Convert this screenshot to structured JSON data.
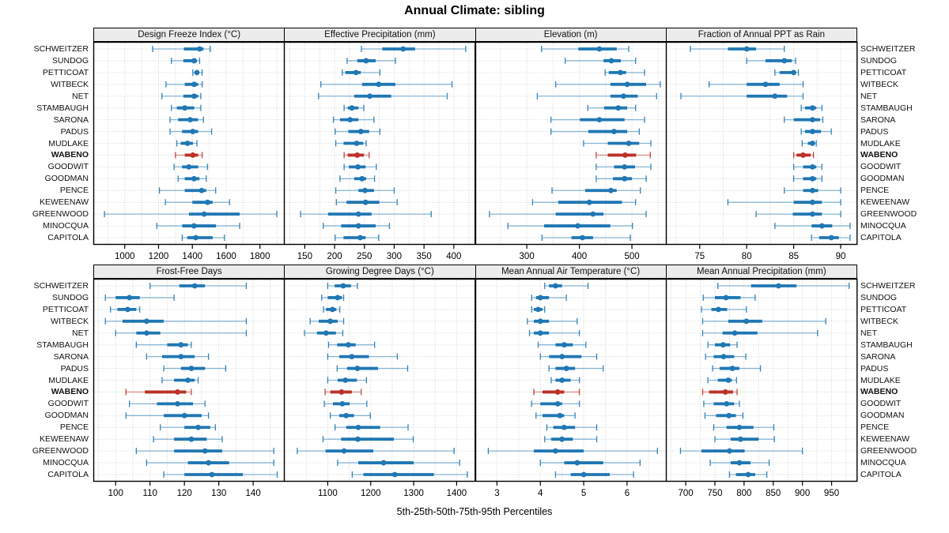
{
  "title": "Annual Climate: sibling",
  "footer": "5th-25th-50th-75th-95th Percentiles",
  "highlight_site": "WABENO",
  "colors": {
    "series_blue": "#2077b4",
    "highlight_red": "#bd3128",
    "header_bg": "#ececec",
    "grid": "#cdcdcd",
    "border": "#000000"
  },
  "sites": [
    "SCHWEITZER",
    "SUNDOG",
    "PETTICOAT",
    "WITBECK",
    "NET",
    "STAMBAUGH",
    "SARONA",
    "PADUS",
    "MUDLAKE",
    "WABENO",
    "GOODWIT",
    "GOODMAN",
    "PENCE",
    "KEWEENAW",
    "GREENWOOD",
    "MINOCQUA",
    "CAPITOLA"
  ],
  "percentile_labels": [
    "p5",
    "p25",
    "p50",
    "p75",
    "p95"
  ],
  "chart_data": [
    {
      "type": "scatter",
      "subtype": "percentile-dotplot",
      "title": "Design Freeze Index (°C)",
      "xlim": [
        814,
        1943
      ],
      "ticks": [
        1000,
        1200,
        1400,
        1600,
        1800
      ],
      "tick_labels": [
        "1000",
        "1200",
        "1400",
        "1600",
        "1800"
      ],
      "grid": [
        900,
        1000,
        1100,
        1200,
        1300,
        1400,
        1500,
        1600,
        1700,
        1800,
        1900
      ],
      "values": [
        [
          1165,
          1350,
          1443,
          1466,
          1506
        ],
        [
          1276,
          1347,
          1411,
          1427,
          1443
        ],
        [
          1403,
          1415,
          1427,
          1440,
          1458
        ],
        [
          1244,
          1355,
          1411,
          1434,
          1458
        ],
        [
          1220,
          1347,
          1411,
          1434,
          1450
        ],
        [
          1276,
          1308,
          1355,
          1411,
          1450
        ],
        [
          1268,
          1316,
          1387,
          1434,
          1466
        ],
        [
          1268,
          1339,
          1403,
          1434,
          1514
        ],
        [
          1308,
          1331,
          1371,
          1403,
          1427
        ],
        [
          1300,
          1355,
          1403,
          1434,
          1458
        ],
        [
          1292,
          1339,
          1379,
          1434,
          1490
        ],
        [
          1316,
          1355,
          1410,
          1442,
          1482
        ],
        [
          1205,
          1355,
          1455,
          1482,
          1538
        ],
        [
          1240,
          1400,
          1490,
          1520,
          1620
        ],
        [
          880,
          1380,
          1470,
          1680,
          1900
        ],
        [
          1190,
          1340,
          1410,
          1540,
          1680
        ],
        [
          1340,
          1370,
          1420,
          1520,
          1590
        ]
      ]
    },
    {
      "type": "scatter",
      "subtype": "percentile-dotplot",
      "title": "Effective Precipitation (mm)",
      "xlim": [
        115,
        435
      ],
      "ticks": [
        150,
        200,
        250,
        300,
        350,
        400
      ],
      "tick_labels": [
        "150",
        "200",
        "250",
        "300",
        "350",
        "400"
      ],
      "grid": [
        125,
        150,
        175,
        200,
        225,
        250,
        275,
        300,
        325,
        350,
        375,
        400,
        425
      ],
      "values": [
        [
          245,
          280,
          315,
          335,
          420
        ],
        [
          221,
          238,
          253,
          269,
          302
        ],
        [
          213,
          218,
          236,
          244,
          276
        ],
        [
          177,
          246,
          274,
          302,
          397
        ],
        [
          173,
          233,
          259,
          295,
          389
        ],
        [
          216,
          222,
          229,
          240,
          249
        ],
        [
          198,
          209,
          226,
          240,
          266
        ],
        [
          201,
          223,
          244,
          258,
          276
        ],
        [
          202,
          215,
          237,
          248,
          253
        ],
        [
          216,
          222,
          238,
          249,
          258
        ],
        [
          216,
          224,
          239,
          252,
          270
        ],
        [
          209,
          233,
          246,
          253,
          267
        ],
        [
          202,
          240,
          251,
          266,
          300
        ],
        [
          203,
          220,
          252,
          275,
          305
        ],
        [
          143,
          189,
          240,
          262,
          362
        ],
        [
          181,
          211,
          240,
          269,
          292
        ],
        [
          201,
          215,
          243,
          252,
          274
        ]
      ]
    },
    {
      "type": "scatter",
      "subtype": "percentile-dotplot",
      "title": "Elevation (m)",
      "xlim": [
        202,
        565
      ],
      "ticks": [
        300,
        400,
        500
      ],
      "tick_labels": [
        "300",
        "400",
        "500"
      ],
      "grid": [
        250,
        300,
        350,
        400,
        450,
        500,
        550
      ],
      "values": [
        [
          328,
          398,
          438,
          471,
          494
        ],
        [
          373,
          446,
          461,
          479,
          507
        ],
        [
          449,
          456,
          478,
          489,
          524
        ],
        [
          355,
          459,
          491,
          527,
          554
        ],
        [
          320,
          459,
          484,
          511,
          547
        ],
        [
          416,
          447,
          474,
          491,
          507
        ],
        [
          346,
          401,
          438,
          486,
          524
        ],
        [
          346,
          417,
          466,
          491,
          514
        ],
        [
          408,
          454,
          494,
          514,
          536
        ],
        [
          432,
          454,
          487,
          508,
          535
        ],
        [
          432,
          466,
          486,
          506,
          536
        ],
        [
          432,
          464,
          486,
          500,
          527
        ],
        [
          348,
          411,
          460,
          471,
          516
        ],
        [
          311,
          360,
          419,
          481,
          507
        ],
        [
          229,
          355,
          426,
          446,
          527
        ],
        [
          264,
          333,
          397,
          459,
          501
        ],
        [
          329,
          385,
          406,
          426,
          497
        ]
      ]
    },
    {
      "type": "scatter",
      "subtype": "percentile-dotplot",
      "title": "Fraction of Annual PPT as Rain",
      "xlim": [
        71.4,
        91.7
      ],
      "ticks": [
        75,
        80,
        85,
        90
      ],
      "tick_labels": [
        "75",
        "80",
        "85",
        "90"
      ],
      "grid": [
        72.5,
        75,
        77.5,
        80,
        82.5,
        85,
        87.5,
        90
      ],
      "values": [
        [
          74,
          78,
          80,
          81,
          84
        ],
        [
          80,
          82,
          84,
          84.8,
          85.2
        ],
        [
          83,
          83.5,
          85,
          85.2,
          85.5
        ],
        [
          76,
          80,
          82,
          83.5,
          86
        ],
        [
          73,
          80,
          83,
          84.3,
          86
        ],
        [
          85.8,
          86.2,
          87,
          87.4,
          88
        ],
        [
          84,
          85,
          87,
          87.8,
          88.1
        ],
        [
          85.8,
          86.2,
          87,
          87.9,
          89
        ],
        [
          85.9,
          86.5,
          87,
          87.2,
          87.4
        ],
        [
          85,
          85.3,
          86,
          86.8,
          87.1
        ],
        [
          85,
          86,
          87,
          87.4,
          88
        ],
        [
          85,
          86,
          87,
          87.4,
          88
        ],
        [
          84,
          86,
          87,
          87.6,
          90
        ],
        [
          78,
          85,
          87,
          88,
          90
        ],
        [
          81,
          84.9,
          87,
          88,
          90
        ],
        [
          83,
          86.9,
          88,
          89.1,
          91
        ],
        [
          86.9,
          87.7,
          89,
          89.8,
          91
        ]
      ]
    },
    {
      "type": "scatter",
      "subtype": "percentile-dotplot",
      "title": "Frost-Free Days",
      "xlim": [
        93.5,
        149
      ],
      "ticks": [
        100,
        110,
        120,
        130,
        140
      ],
      "tick_labels": [
        "100",
        "110",
        "120",
        "130",
        "140"
      ],
      "grid": [
        95,
        100,
        105,
        110,
        115,
        120,
        125,
        130,
        135,
        140,
        145
      ],
      "values": [
        [
          110,
          118.5,
          123,
          126,
          138
        ],
        [
          97,
          100,
          104,
          107,
          117
        ],
        [
          98.5,
          100.5,
          103.5,
          106,
          107
        ],
        [
          97,
          102,
          109,
          114,
          138
        ],
        [
          100,
          106,
          109,
          113,
          138
        ],
        [
          106,
          115,
          119,
          121,
          122
        ],
        [
          109,
          113.5,
          119,
          123,
          127
        ],
        [
          114,
          119,
          122,
          126,
          132
        ],
        [
          113.5,
          117,
          121,
          123,
          124
        ],
        [
          103,
          108.5,
          118,
          120.5,
          122
        ],
        [
          104,
          112,
          118,
          122.5,
          126
        ],
        [
          103,
          114,
          120,
          125,
          127
        ],
        [
          113,
          120,
          124,
          127.5,
          129
        ],
        [
          111,
          117,
          122,
          126.5,
          131
        ],
        [
          106,
          117,
          126,
          131,
          146
        ],
        [
          109,
          121,
          127,
          133,
          146
        ],
        [
          114,
          120,
          128,
          137,
          147
        ]
      ]
    },
    {
      "type": "scatter",
      "subtype": "percentile-dotplot",
      "title": "Growing Degree Days (°C)",
      "xlim": [
        998,
        1442
      ],
      "ticks": [
        1100,
        1200,
        1300,
        1400
      ],
      "tick_labels": [
        "1100",
        "1200",
        "1300",
        "1400"
      ],
      "grid": [
        1000,
        1050,
        1100,
        1150,
        1200,
        1250,
        1300,
        1350,
        1400
      ],
      "values": [
        [
          1100,
          1116,
          1136,
          1154,
          1169
        ],
        [
          1086,
          1100,
          1123,
          1133,
          1137
        ],
        [
          1090,
          1096,
          1111,
          1120,
          1128
        ],
        [
          1059,
          1079,
          1106,
          1123,
          1137
        ],
        [
          1046,
          1075,
          1096,
          1119,
          1135
        ],
        [
          1102,
          1122,
          1148,
          1165,
          1209
        ],
        [
          1100,
          1127,
          1156,
          1196,
          1262
        ],
        [
          1122,
          1145,
          1169,
          1217,
          1286
        ],
        [
          1100,
          1123,
          1141,
          1168,
          1190
        ],
        [
          1094,
          1106,
          1132,
          1156,
          1178
        ],
        [
          1092,
          1112,
          1134,
          1151,
          1191
        ],
        [
          1106,
          1127,
          1143,
          1161,
          1199
        ],
        [
          1117,
          1143,
          1171,
          1222,
          1287
        ],
        [
          1089,
          1131,
          1170,
          1254,
          1299
        ],
        [
          1029,
          1095,
          1138,
          1206,
          1394
        ],
        [
          1123,
          1171,
          1230,
          1300,
          1407
        ],
        [
          1157,
          1183,
          1256,
          1347,
          1425
        ]
      ]
    },
    {
      "type": "scatter",
      "subtype": "percentile-dotplot",
      "title": "Mean Annual Air Temperature (°C)",
      "xlim": [
        2.5,
        6.9
      ],
      "ticks": [
        3,
        4,
        5,
        6
      ],
      "tick_labels": [
        "3",
        "4",
        "5",
        "6"
      ],
      "grid": [
        2.5,
        3,
        3.5,
        4,
        4.5,
        5,
        5.5,
        6,
        6.5
      ],
      "values": [
        [
          4.1,
          4.2,
          4.35,
          4.5,
          5.1
        ],
        [
          3.8,
          3.9,
          4.0,
          4.2,
          4.6
        ],
        [
          3.8,
          3.85,
          3.95,
          4.05,
          4.1
        ],
        [
          3.7,
          3.85,
          4.0,
          4.2,
          4.85
        ],
        [
          3.75,
          3.85,
          4.0,
          4.2,
          4.9
        ],
        [
          3.95,
          4.35,
          4.55,
          4.75,
          5.05
        ],
        [
          4.0,
          4.2,
          4.5,
          4.95,
          5.3
        ],
        [
          4.2,
          4.35,
          4.6,
          4.8,
          5.45
        ],
        [
          4.25,
          4.35,
          4.5,
          4.7,
          4.9
        ],
        [
          3.85,
          4.05,
          4.4,
          4.55,
          4.9
        ],
        [
          3.8,
          4.0,
          4.4,
          4.5,
          4.9
        ],
        [
          3.9,
          4.05,
          4.45,
          4.55,
          4.8
        ],
        [
          4.15,
          4.3,
          4.55,
          4.8,
          5.3
        ],
        [
          4.1,
          4.25,
          4.5,
          4.75,
          5.3
        ],
        [
          2.8,
          3.85,
          4.35,
          5.0,
          6.7
        ],
        [
          4.0,
          4.55,
          4.85,
          5.45,
          6.3
        ],
        [
          4.35,
          4.7,
          5.0,
          5.6,
          6.15
        ]
      ]
    },
    {
      "type": "scatter",
      "subtype": "percentile-dotplot",
      "title": "Mean Annual Precipitation (mm)",
      "xlim": [
        666,
        993
      ],
      "ticks": [
        700,
        750,
        800,
        850,
        900,
        950
      ],
      "tick_labels": [
        "700",
        "750",
        "800",
        "850",
        "900",
        "950"
      ],
      "grid": [
        675,
        700,
        725,
        750,
        775,
        800,
        825,
        850,
        875,
        900,
        925,
        950,
        975
      ],
      "values": [
        [
          755,
          812,
          859,
          890,
          980
        ],
        [
          730,
          750,
          769,
          794,
          819
        ],
        [
          727,
          744,
          756,
          771,
          804
        ],
        [
          729,
          773,
          804,
          831,
          940
        ],
        [
          729,
          763,
          784,
          823,
          926
        ],
        [
          738,
          750,
          764,
          776,
          788
        ],
        [
          734,
          748,
          765,
          783,
          803
        ],
        [
          746,
          758,
          780,
          792,
          828
        ],
        [
          738,
          755,
          773,
          779,
          787
        ],
        [
          729,
          740,
          768,
          781,
          788
        ],
        [
          731,
          748,
          770,
          783,
          792
        ],
        [
          733,
          752,
          774,
          786,
          798
        ],
        [
          748,
          770,
          792,
          816,
          851
        ],
        [
          750,
          777,
          794,
          825,
          852
        ],
        [
          691,
          727,
          775,
          801,
          900
        ],
        [
          742,
          777,
          792,
          811,
          843
        ],
        [
          775,
          786,
          807,
          819,
          839
        ]
      ]
    }
  ]
}
